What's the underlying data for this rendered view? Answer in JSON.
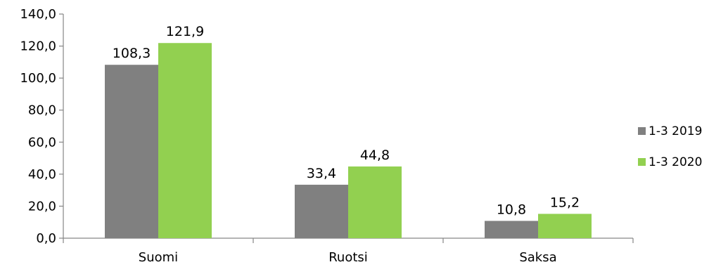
{
  "chart_data": {
    "type": "bar",
    "categories": [
      "Suomi",
      "Ruotsi",
      "Saksa"
    ],
    "series": [
      {
        "name": "1-3 2019",
        "values": [
          108.3,
          33.4,
          10.8
        ],
        "color": "#808080"
      },
      {
        "name": "1-3 2020",
        "values": [
          121.9,
          44.8,
          15.2
        ],
        "color": "#92d050"
      }
    ],
    "data_labels": [
      [
        "108,3",
        "33,4",
        "10,8"
      ],
      [
        "121,9",
        "44,8",
        "15,2"
      ]
    ],
    "y_ticks": [
      0,
      20,
      40,
      60,
      80,
      100,
      120,
      140
    ],
    "y_tick_labels": [
      "0,0",
      "20,0",
      "40,0",
      "60,0",
      "80,0",
      "100,0",
      "120,0",
      "140,0"
    ],
    "ylim": [
      0,
      140
    ],
    "grid": false,
    "legend_position": "right"
  }
}
